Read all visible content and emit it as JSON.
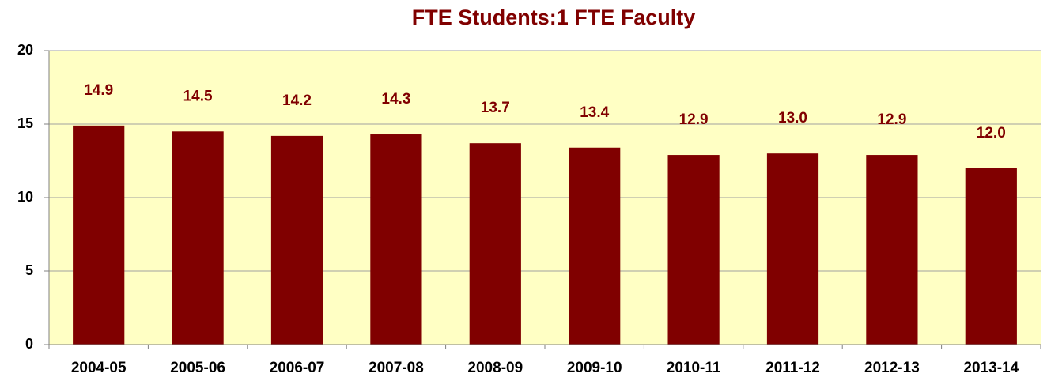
{
  "chart_data": {
    "type": "bar",
    "title": "FTE Students:1 FTE Faculty",
    "categories": [
      "2004-05",
      "2005-06",
      "2006-07",
      "2007-08",
      "2008-09",
      "2009-10",
      "2010-11",
      "2011-12",
      "2012-13",
      "2013-14"
    ],
    "values": [
      14.9,
      14.5,
      14.2,
      14.3,
      13.7,
      13.4,
      12.9,
      13.0,
      12.9,
      12.0
    ],
    "value_labels": [
      "14.9",
      "14.5",
      "14.2",
      "14.3",
      "13.7",
      "13.4",
      "12.9",
      "13.0",
      "12.9",
      "12.0"
    ],
    "color": "#800000",
    "background": "#ffffc4",
    "ylim": [
      0,
      20
    ],
    "yticks": [
      0,
      5,
      10,
      15,
      20
    ],
    "grid": true
  }
}
